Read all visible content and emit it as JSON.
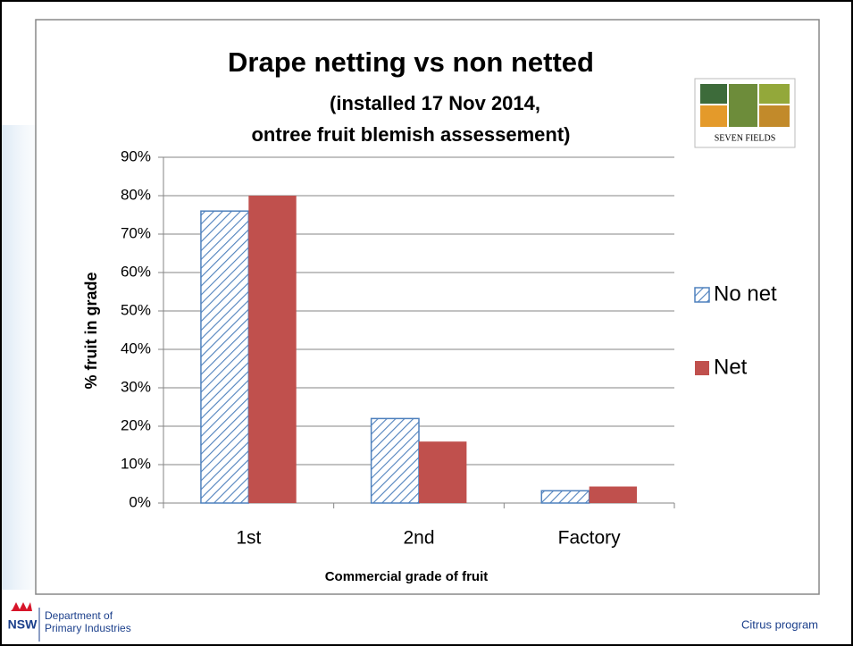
{
  "chart_data": {
    "type": "bar",
    "title": "Drape netting vs non netted",
    "subtitle": [
      "(installed 17 Nov 2014,",
      "ontree fruit blemish assessement)"
    ],
    "x_label": "Commercial grade of fruit",
    "y_label": "% fruit in grade",
    "categories": [
      "1st",
      "2nd",
      "Factory"
    ],
    "series": [
      {
        "name": "No net",
        "color": "#4f81bd",
        "pattern": "hatch",
        "values": [
          76,
          22,
          3.2
        ]
      },
      {
        "name": "Net",
        "color": "#c0504d",
        "values": [
          80,
          16,
          4.3
        ]
      }
    ],
    "ylim": [
      0,
      90
    ],
    "yticks": [
      {
        "value": 0,
        "label": "0%"
      },
      {
        "value": 10,
        "label": "10%"
      },
      {
        "value": 20,
        "label": "20%"
      },
      {
        "value": 30,
        "label": "30%"
      },
      {
        "value": 40,
        "label": "40%"
      },
      {
        "value": 50,
        "label": "50%"
      },
      {
        "value": 60,
        "label": "60%"
      },
      {
        "value": 70,
        "label": "70%"
      },
      {
        "value": 80,
        "label": "80%"
      },
      {
        "value": 90,
        "label": "90%"
      }
    ],
    "grid": true,
    "legend": "right"
  },
  "logo": {
    "text": "SEVEN FIELDS"
  },
  "footer": {
    "mark": "NSW",
    "org": [
      "Department of",
      "Primary Industries"
    ],
    "program": "Citrus program"
  }
}
